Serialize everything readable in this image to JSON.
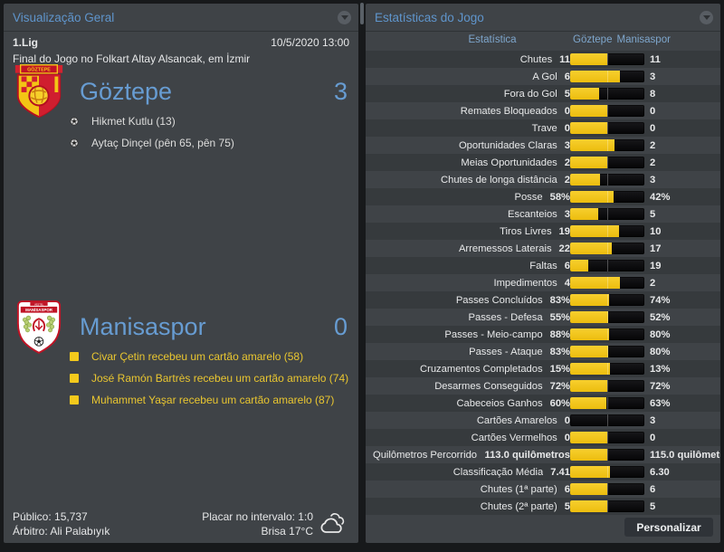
{
  "left_panel": {
    "title": "Visualização Geral",
    "competition": "1.Lig",
    "datetime": "10/5/2020 13:00",
    "venue_line": "Final do Jogo no Folkart Altay Alsancak, em İzmir",
    "home_team": {
      "name": "Göztepe",
      "score": "3",
      "events": [
        {
          "type": "goal",
          "icon": "football-icon",
          "text": "Hikmet Kutlu (13)"
        },
        {
          "type": "goal",
          "icon": "football-icon",
          "text": "Aytaç Dinçel (pên 65, pên 75)"
        }
      ]
    },
    "away_team": {
      "name": "Manisaspor",
      "score": "0",
      "events": [
        {
          "type": "yellow-card",
          "icon": "yellow-card-icon",
          "text": "Civar Çetin recebeu um cartão amarelo (58)"
        },
        {
          "type": "yellow-card",
          "icon": "yellow-card-icon",
          "text": "José Ramón Bartrès recebeu um cartão amarelo (74)"
        },
        {
          "type": "yellow-card",
          "icon": "yellow-card-icon",
          "text": "Muhammet Yaşar recebeu um cartão amarelo (87)"
        }
      ]
    },
    "footer": {
      "attendance": "Público: 15,737",
      "referee": "Árbitro: Ali Palabıyık",
      "half_time_score": "Placar no intervalo: 1:0",
      "weather": "Brisa 17°C",
      "weather_icon": "cloud-icon"
    }
  },
  "stats_panel": {
    "title": "Estatísticas do Jogo",
    "columns": {
      "stat": "Estatística",
      "home": "Göztepe",
      "away": "Manisaspor"
    },
    "rows": [
      {
        "label": "Chutes",
        "home": "11",
        "away": "11"
      },
      {
        "label": "A Gol",
        "home": "6",
        "away": "3"
      },
      {
        "label": "Fora do Gol",
        "home": "5",
        "away": "8"
      },
      {
        "label": "Remates Bloqueados",
        "home": "0",
        "away": "0"
      },
      {
        "label": "Trave",
        "home": "0",
        "away": "0"
      },
      {
        "label": "Oportunidades Claras",
        "home": "3",
        "away": "2"
      },
      {
        "label": "Meias Oportunidades",
        "home": "2",
        "away": "2"
      },
      {
        "label": "Chutes de longa distância",
        "home": "2",
        "away": "3"
      },
      {
        "label": "Posse",
        "home": "58%",
        "away": "42%"
      },
      {
        "label": "Escanteios",
        "home": "3",
        "away": "5"
      },
      {
        "label": "Tiros Livres",
        "home": "19",
        "away": "10"
      },
      {
        "label": "Arremessos Laterais",
        "home": "22",
        "away": "17"
      },
      {
        "label": "Faltas",
        "home": "6",
        "away": "19"
      },
      {
        "label": "Impedimentos",
        "home": "4",
        "away": "2"
      },
      {
        "label": "Passes Concluídos",
        "home": "83%",
        "away": "74%"
      },
      {
        "label": "Passes - Defesa",
        "home": "55%",
        "away": "52%"
      },
      {
        "label": "Passes - Meio-campo",
        "home": "88%",
        "away": "80%"
      },
      {
        "label": "Passes - Ataque",
        "home": "83%",
        "away": "80%"
      },
      {
        "label": "Cruzamentos Completados",
        "home": "15%",
        "away": "13%"
      },
      {
        "label": "Desarmes Conseguidos",
        "home": "72%",
        "away": "72%"
      },
      {
        "label": "Cabeceios Ganhos",
        "home": "60%",
        "away": "63%"
      },
      {
        "label": "Cartões Amarelos",
        "home": "0",
        "away": "3"
      },
      {
        "label": "Cartões Vermelhos",
        "home": "0",
        "away": "0"
      },
      {
        "label": "Quilômetros Percorridos",
        "home": "113.0 quilômetros",
        "away": "115.0 quilômetros"
      },
      {
        "label": "Classificação Média",
        "home": "7.41",
        "away": "6.30"
      },
      {
        "label": "Chutes (1ª parte)",
        "home": "6",
        "away": "6"
      },
      {
        "label": "Chutes (2ª parte)",
        "home": "5",
        "away": "5"
      }
    ],
    "personalize_button": "Personalizar"
  },
  "colors": {
    "home_bar_yellow": "#f0c115",
    "away_bar_black": "#0a0a0a",
    "accent_blue": "#679cd2",
    "card_yellow": "#e9c630"
  }
}
